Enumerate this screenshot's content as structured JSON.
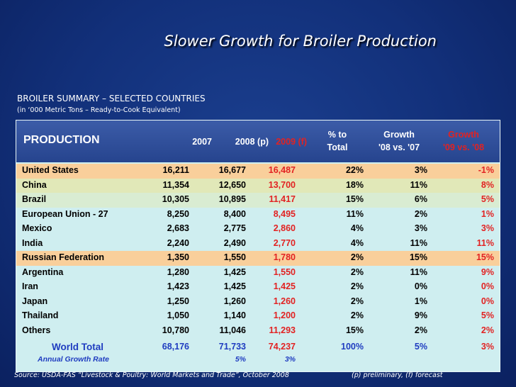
{
  "slide": {
    "title": "Slower Growth for Broiler Production",
    "summary_title": "BROILER SUMMARY – SELECTED COUNTRIES",
    "summary_sub": "(in ‘000 Metric Tons – Ready-to-Cook Equivalent)",
    "source": "Source: USDA-FAS “Livestock & Poultry: World Markets and Trade”, October 2008",
    "note": "(p) preliminary, (f) forecast"
  },
  "table": {
    "header": {
      "label": "PRODUCTION",
      "y2007": "2007",
      "y2008": "2008 (p)",
      "y2009": "2009 (f)",
      "pct_line1": "% to",
      "pct_line2": "Total",
      "g1_line1": "Growth",
      "g1_line2": "'08 vs. '07",
      "g2_line1": "Growth",
      "g2_line2": "'09 vs. '08"
    },
    "rows": [
      {
        "country": "United States",
        "y2007": "16,211",
        "y2008": "16,677",
        "y2009": "16,487",
        "pct": "22%",
        "g1": "3%",
        "g2": "-1%"
      },
      {
        "country": "China",
        "y2007": "11,354",
        "y2008": "12,650",
        "y2009": "13,700",
        "pct": "18%",
        "g1": "11%",
        "g2": "8%"
      },
      {
        "country": "Brazil",
        "y2007": "10,305",
        "y2008": "10,895",
        "y2009": "11,417",
        "pct": "15%",
        "g1": "6%",
        "g2": "5%"
      },
      {
        "country": "European Union - 27",
        "y2007": "8,250",
        "y2008": "8,400",
        "y2009": "8,495",
        "pct": "11%",
        "g1": "2%",
        "g2": "1%"
      },
      {
        "country": "Mexico",
        "y2007": "2,683",
        "y2008": "2,775",
        "y2009": "2,860",
        "pct": "4%",
        "g1": "3%",
        "g2": "3%"
      },
      {
        "country": "India",
        "y2007": "2,240",
        "y2008": "2,490",
        "y2009": "2,770",
        "pct": "4%",
        "g1": "11%",
        "g2": "11%"
      },
      {
        "country": "Russian Federation",
        "y2007": "1,350",
        "y2008": "1,550",
        "y2009": "1,780",
        "pct": "2%",
        "g1": "15%",
        "g2": "15%"
      },
      {
        "country": "Argentina",
        "y2007": "1,280",
        "y2008": "1,425",
        "y2009": "1,550",
        "pct": "2%",
        "g1": "11%",
        "g2": "9%"
      },
      {
        "country": "Iran",
        "y2007": "1,423",
        "y2008": "1,425",
        "y2009": "1,425",
        "pct": "2%",
        "g1": "0%",
        "g2": "0%"
      },
      {
        "country": "Japan",
        "y2007": "1,250",
        "y2008": "1,260",
        "y2009": "1,260",
        "pct": "2%",
        "g1": "1%",
        "g2": "0%"
      },
      {
        "country": "Thailand",
        "y2007": "1,050",
        "y2008": "1,140",
        "y2009": "1,200",
        "pct": "2%",
        "g1": "9%",
        "g2": "5%"
      },
      {
        "country": "Others",
        "y2007": "10,780",
        "y2008": "11,046",
        "y2009": "11,293",
        "pct": "15%",
        "g1": "2%",
        "g2": "2%"
      }
    ],
    "world_total": {
      "label": "World Total",
      "y2007": "68,176",
      "y2008": "71,733",
      "y2009": "74,237",
      "pct": "100%",
      "g1": "5%",
      "g2": "3%"
    },
    "annual_growth": {
      "label": "Annual Growth Rate",
      "y2008": "5%",
      "y2009": "3%"
    }
  }
}
